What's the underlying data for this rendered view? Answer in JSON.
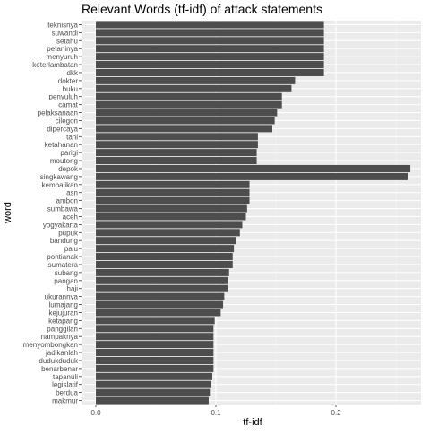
{
  "chart_data": {
    "type": "bar",
    "orientation": "horizontal",
    "title": "Relevant Words (tf-idf) of attack statements",
    "xlabel": "tf-idf",
    "ylabel": "word",
    "xlim": [
      0,
      0.265
    ],
    "xticks": [
      0.0,
      0.1,
      0.2
    ],
    "xtick_labels": [
      "0.0",
      "0.1",
      "0.2"
    ],
    "grid": true,
    "bar_color": "#4d4d4d",
    "panel_bg": "#ebebeb",
    "categories": [
      "teknisnya",
      "suwandi",
      "setahu",
      "petaninya",
      "menyuruh",
      "keterlambatan",
      "dkk",
      "dokter",
      "buku",
      "penyuluh",
      "camat",
      "pelaksanaan",
      "cilegon",
      "dipercaya",
      "tani",
      "ketahanan",
      "parigi",
      "moutong",
      "depok",
      "singkawang",
      "kembalikan",
      "asn",
      "ambon",
      "sumbawa",
      "aceh",
      "yogyakarta",
      "pupuk",
      "bandung",
      "palu",
      "pontianak",
      "sumatera",
      "subang",
      "pangan",
      "haji",
      "ukurannya",
      "lumajang",
      "kejujuran",
      "ketapang",
      "panggilan",
      "nampaknya",
      "menyombongkan",
      "jadikanlah",
      "dudukduduk",
      "benarbenar",
      "tapanuli",
      "legislatif",
      "berdua",
      "makmur"
    ],
    "values": [
      0.19,
      0.19,
      0.19,
      0.19,
      0.19,
      0.19,
      0.19,
      0.166,
      0.163,
      0.155,
      0.155,
      0.151,
      0.149,
      0.147,
      0.135,
      0.135,
      0.134,
      0.134,
      0.262,
      0.26,
      0.128,
      0.128,
      0.128,
      0.126,
      0.125,
      0.122,
      0.12,
      0.117,
      0.115,
      0.114,
      0.114,
      0.111,
      0.11,
      0.11,
      0.107,
      0.106,
      0.104,
      0.099,
      0.098,
      0.098,
      0.098,
      0.098,
      0.098,
      0.098,
      0.097,
      0.096,
      0.095,
      0.094
    ]
  }
}
